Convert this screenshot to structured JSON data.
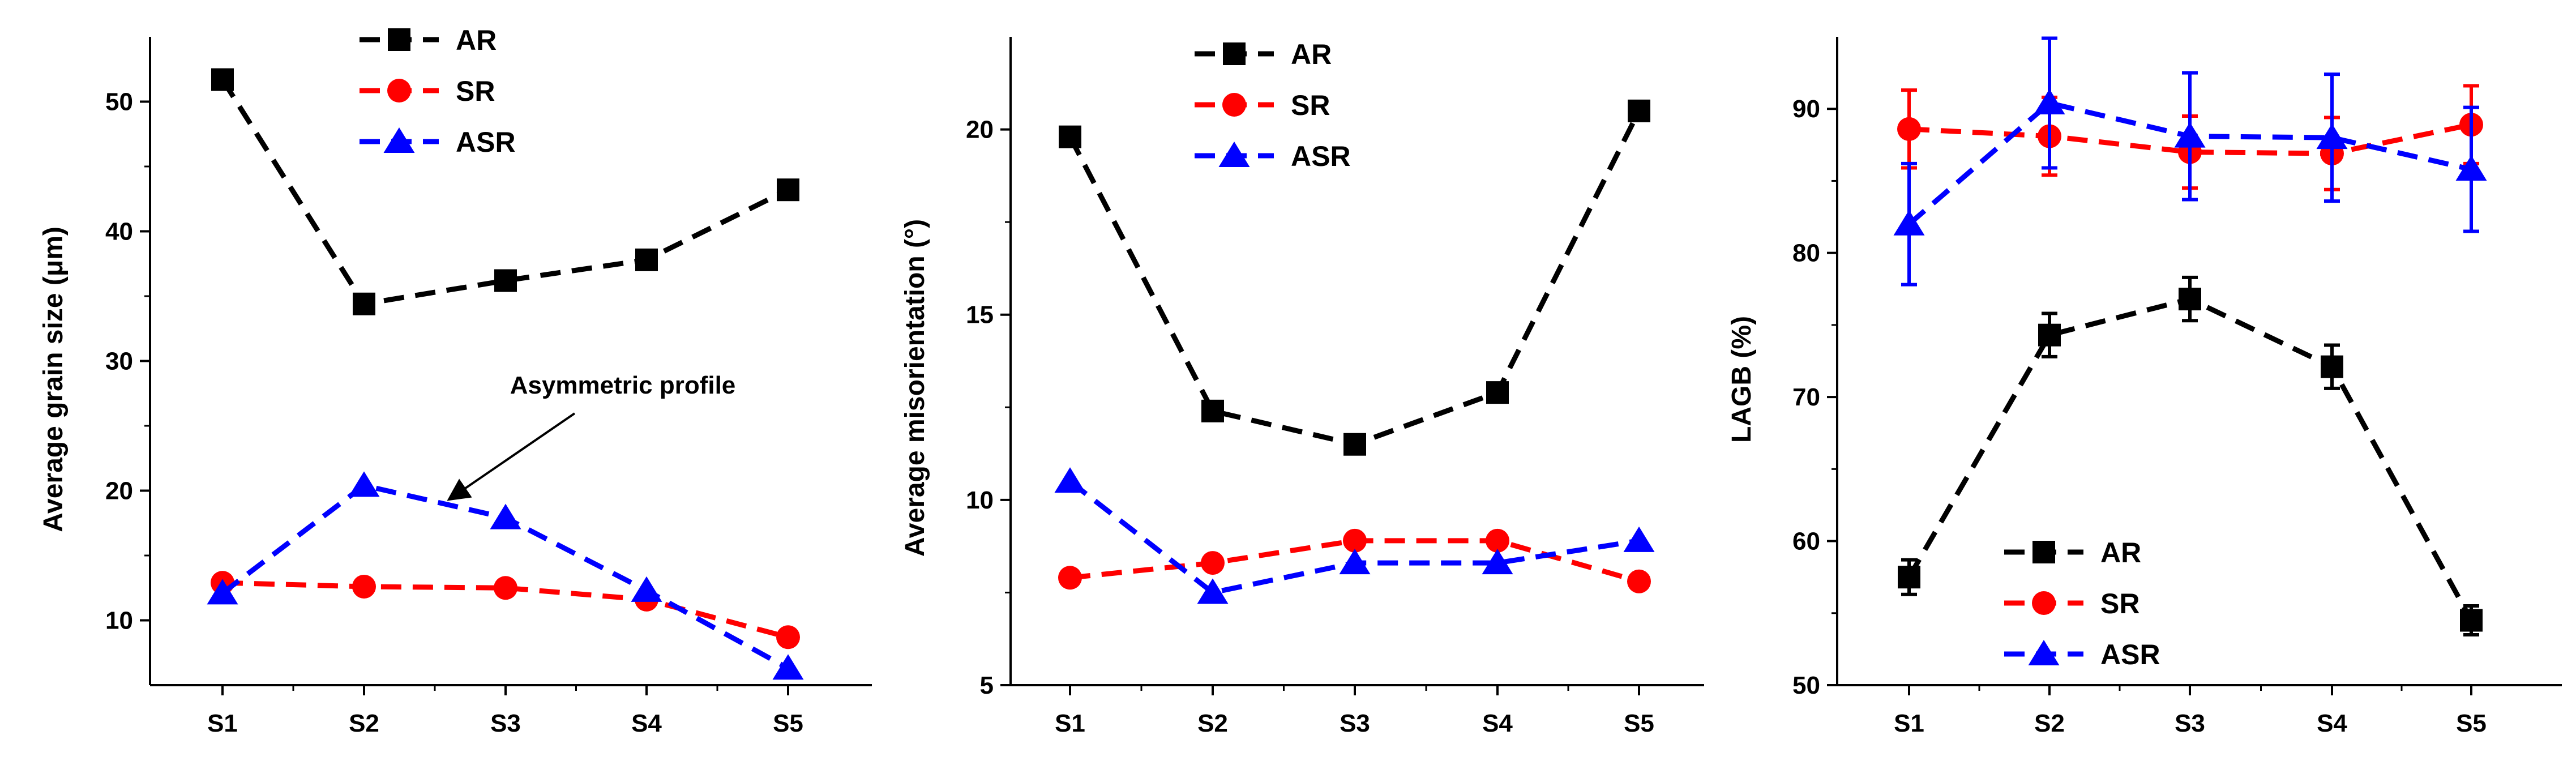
{
  "chart_data": [
    {
      "type": "line",
      "title": "",
      "xlabel": "",
      "ylabel": "Average grain size (μm)",
      "categories": [
        "S1",
        "S2",
        "S3",
        "S4",
        "S5"
      ],
      "ylim": [
        5,
        55
      ],
      "yticks": [
        10,
        20,
        30,
        40,
        50
      ],
      "series": [
        {
          "name": "AR",
          "color": "#000000",
          "marker": "square",
          "values": [
            51.7,
            34.4,
            36.2,
            37.8,
            43.2
          ]
        },
        {
          "name": "SR",
          "color": "#ff0000",
          "marker": "circle",
          "values": [
            12.9,
            12.6,
            12.5,
            11.6,
            8.7
          ]
        },
        {
          "name": "ASR",
          "color": "#0000ff",
          "marker": "triangle",
          "values": [
            12.1,
            20.4,
            17.9,
            12.3,
            6.3
          ]
        }
      ],
      "legend_position": "top-center",
      "annotations": [
        {
          "text": "Asymmetric profile",
          "arrow": true,
          "points_to": {
            "x": "S2",
            "y": 20
          }
        }
      ]
    },
    {
      "type": "line",
      "title": "",
      "xlabel": "",
      "ylabel": "Average misorientation (°)",
      "categories": [
        "S1",
        "S2",
        "S3",
        "S4",
        "S5"
      ],
      "ylim": [
        5,
        22.5
      ],
      "yticks": [
        5,
        10,
        15,
        20
      ],
      "series": [
        {
          "name": "AR",
          "color": "#000000",
          "marker": "square",
          "values": [
            19.8,
            12.4,
            11.5,
            12.9,
            20.5
          ]
        },
        {
          "name": "SR",
          "color": "#ff0000",
          "marker": "circle",
          "values": [
            7.9,
            8.3,
            8.9,
            8.9,
            7.8
          ]
        },
        {
          "name": "ASR",
          "color": "#0000ff",
          "marker": "triangle",
          "values": [
            10.5,
            7.5,
            8.3,
            8.3,
            8.9
          ]
        }
      ],
      "legend_position": "top-center"
    },
    {
      "type": "line",
      "title": "",
      "xlabel": "",
      "ylabel": "LAGB (%)",
      "categories": [
        "S1",
        "S2",
        "S3",
        "S4",
        "S5"
      ],
      "ylim": [
        50,
        95
      ],
      "yticks": [
        50,
        60,
        70,
        80,
        90
      ],
      "series": [
        {
          "name": "AR",
          "color": "#000000",
          "marker": "square",
          "values": [
            57.5,
            74.3,
            76.8,
            72.1,
            54.5
          ],
          "errors": [
            1.2,
            1.5,
            1.5,
            1.5,
            1.0
          ]
        },
        {
          "name": "SR",
          "color": "#ff0000",
          "marker": "circle",
          "values": [
            88.6,
            88.1,
            87.0,
            86.9,
            88.9
          ],
          "errors": [
            2.7,
            2.7,
            2.5,
            2.5,
            2.7
          ]
        },
        {
          "name": "ASR",
          "color": "#0000ff",
          "marker": "triangle",
          "values": [
            82.0,
            90.4,
            88.1,
            88.0,
            85.8
          ],
          "errors": [
            4.2,
            4.5,
            4.4,
            4.4,
            4.3
          ]
        }
      ],
      "legend_position": "bottom-center"
    }
  ]
}
